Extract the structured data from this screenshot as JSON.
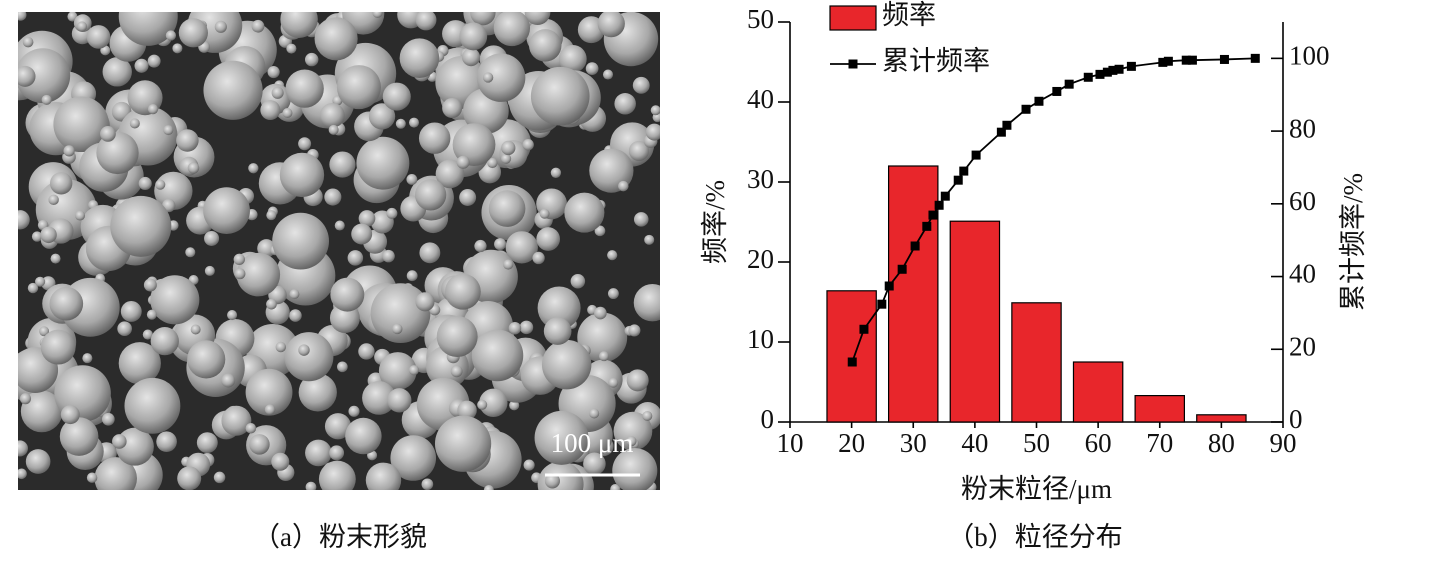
{
  "image": {
    "scale_bar_label": "100 μm"
  },
  "captions": [
    "（a）粉末形貌",
    "（b）粒径分布"
  ],
  "chart_data": {
    "type": "bar",
    "x_label": "粉末粒径/μm",
    "y_label": "频率/%",
    "y2_label": "累计频率/%",
    "xlim": [
      10,
      90
    ],
    "xticks": [
      10,
      20,
      30,
      40,
      50,
      60,
      70,
      80,
      90
    ],
    "ylim": [
      0,
      50
    ],
    "yticks": [
      0,
      10,
      20,
      30,
      40,
      50
    ],
    "y2lim": [
      0,
      110
    ],
    "y2ticks": [
      0,
      20,
      40,
      60,
      80,
      100
    ],
    "legend": "top-left",
    "x": [
      20,
      30,
      40,
      50,
      60,
      70,
      80
    ],
    "series": [
      {
        "name": "频率",
        "type": "bar",
        "color": "#e8262b",
        "values": [
          16.4,
          32,
          25.1,
          14.9,
          7.5,
          3.3,
          0.9
        ]
      },
      {
        "name": "累计频率",
        "type": "line",
        "axis": "y2",
        "color": "#000000",
        "x": [
          20.1,
          22,
          24.9,
          26.1,
          28.2,
          30.3,
          32.2,
          33.2,
          34.2,
          35.2,
          37.3,
          38.2,
          40.2,
          44.3,
          45.2,
          48.3,
          50.4,
          53.3,
          55.3,
          58.4,
          60.3,
          61.5,
          62.4,
          63.4,
          65.4,
          70.5,
          71.4,
          74.3,
          75.3,
          80.5,
          85.5
        ],
        "values": [
          16.5,
          25.5,
          32.4,
          37.4,
          42,
          48.4,
          53.8,
          56.9,
          59.6,
          62.1,
          66.5,
          69,
          73.4,
          79.7,
          81.6,
          86,
          88.2,
          90.9,
          92.9,
          94.8,
          95.6,
          96.2,
          96.7,
          97,
          97.8,
          98.9,
          99.2,
          99.5,
          99.5,
          99.7,
          100
        ]
      }
    ]
  }
}
